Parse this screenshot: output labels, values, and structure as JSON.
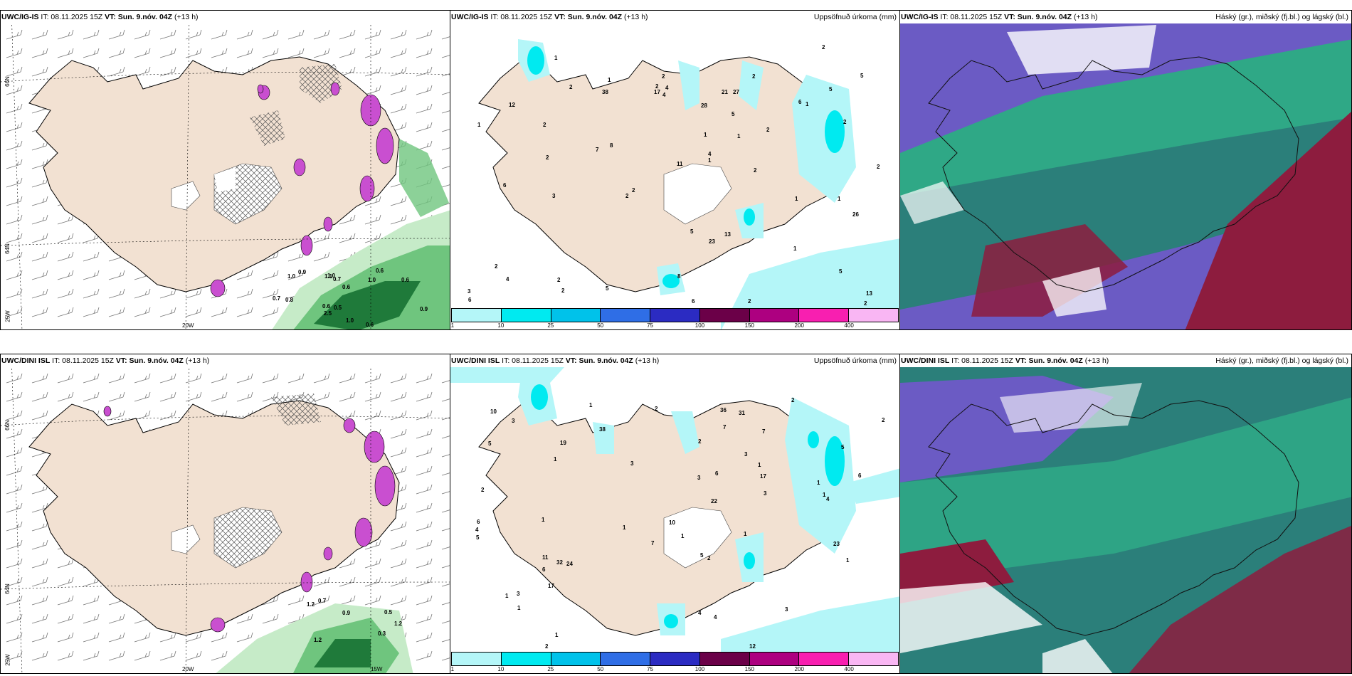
{
  "colors": {
    "land": "#f2e1d2",
    "ice": "#ffffff",
    "precip_light": "#b4f6f8",
    "precip_mid": "#3ee6f0",
    "snow_pink": "#c94fd0",
    "green_dark": "#1f7a3a",
    "green_mid": "#6fc57e",
    "green_light": "#c6ebc8",
    "cloud_purple": "#6b5bc4",
    "cloud_green": "#2fa886",
    "cloud_teal": "#2b7f7a",
    "cloud_maroon": "#8d1c3e"
  },
  "colorbar": {
    "colors": [
      "#b4f6f8",
      "#00eaf0",
      "#00c2ea",
      "#2f6ee6",
      "#2b2bc2",
      "#6b0048",
      "#ad0080",
      "#f81fb0",
      "#f9b6f3"
    ],
    "ticks": [
      "1",
      "10",
      "25",
      "50",
      "75",
      "100",
      "150",
      "200",
      "400"
    ]
  },
  "top": {
    "panel1": {
      "model": "UWC/IG-IS",
      "it": "IT: 08.11.2025 15Z",
      "vt": "VT: Sun. 9.nóv. 04Z",
      "lead": "(+13 h)",
      "right": ""
    },
    "panel2": {
      "model": "UWC/IG-IS",
      "it": "IT: 08.11.2025 15Z",
      "vt": "VT: Sun. 9.nóv. 04Z",
      "lead": "(+13 h)",
      "right": "Uppsöfnuð úrkoma (mm)"
    },
    "panel3": {
      "model": "UWC/IG-IS",
      "it": "IT: 08.11.2025 15Z",
      "vt": "VT: Sun. 9.nóv. 04Z",
      "lead": "(+13 h)",
      "right": "Háský (gr.), miðský (fj.bl.) og lágský (bl.)"
    }
  },
  "bottom": {
    "panel1": {
      "model": "UWC/DINI ISL",
      "it": "IT: 08.11.2025 15Z",
      "vt": "VT: Sun. 9.nóv. 04Z",
      "lead": "(+13 h)",
      "right": ""
    },
    "panel2": {
      "model": "UWC/DINI ISL",
      "it": "IT: 08.11.2025 15Z",
      "vt": "VT: Sun. 9.nóv. 04Z",
      "lead": "(+13 h)",
      "right": "Uppsöfnuð úrkoma (mm)"
    },
    "panel3": {
      "model": "UWC/DINI ISL",
      "it": "IT: 08.11.2025 15Z",
      "vt": "VT: Sun. 9.nóv. 04Z",
      "lead": "(+13 h)",
      "right": "Háský (gr.), miðský (fj.bl.) og lágský (bl.)"
    }
  },
  "grid_labels": {
    "lat66": "66N",
    "lat64": "64N",
    "lon25": "25W",
    "lon20": "20W",
    "lon15": "15W"
  },
  "precip_labels_top": [
    "23",
    "2",
    "6",
    "13",
    "8",
    "3",
    "3",
    "2",
    "12",
    "2",
    "26",
    "27",
    "2",
    "17",
    "5",
    "4",
    "5",
    "8",
    "2",
    "1",
    "2",
    "5",
    "7",
    "6",
    "5",
    "2",
    "11",
    "21",
    "13",
    "1",
    "2",
    "6",
    "28",
    "2",
    "2",
    "1",
    "2",
    "1",
    "1",
    "2",
    "1",
    "2",
    "2",
    "1",
    "1",
    "1",
    "2",
    "38",
    "1",
    "2",
    "2",
    "2",
    "4",
    "4",
    "5",
    "5",
    "6",
    "4"
  ],
  "precip_labels_bottom": [
    "2",
    "1",
    "1",
    "1",
    "22",
    "6",
    "3",
    "1",
    "11",
    "6",
    "5",
    "3",
    "6",
    "7",
    "3",
    "7",
    "3",
    "19",
    "3",
    "2",
    "2",
    "36",
    "32",
    "31",
    "4",
    "3",
    "6",
    "12",
    "24",
    "7",
    "17",
    "1",
    "4",
    "10",
    "2",
    "10",
    "23",
    "1",
    "2",
    "17",
    "1",
    "1",
    "1",
    "1",
    "1",
    "2",
    "1",
    "38",
    "1",
    "2",
    "3",
    "4",
    "4",
    "5",
    "5",
    "5"
  ],
  "snow_labels_top": [
    "1.0",
    "0.9",
    "0.6",
    "1.0",
    "0.8",
    "1.1",
    "0.6",
    "0.6",
    "0.7",
    "0.9",
    "0.7",
    "0.6",
    "0.5",
    "0.6",
    "1.0",
    "1.0",
    "2.5"
  ],
  "snow_labels_bottom": [
    "0.5",
    "0.7",
    "0.9",
    "1.2",
    "1.2",
    "1.2",
    "0.3"
  ]
}
